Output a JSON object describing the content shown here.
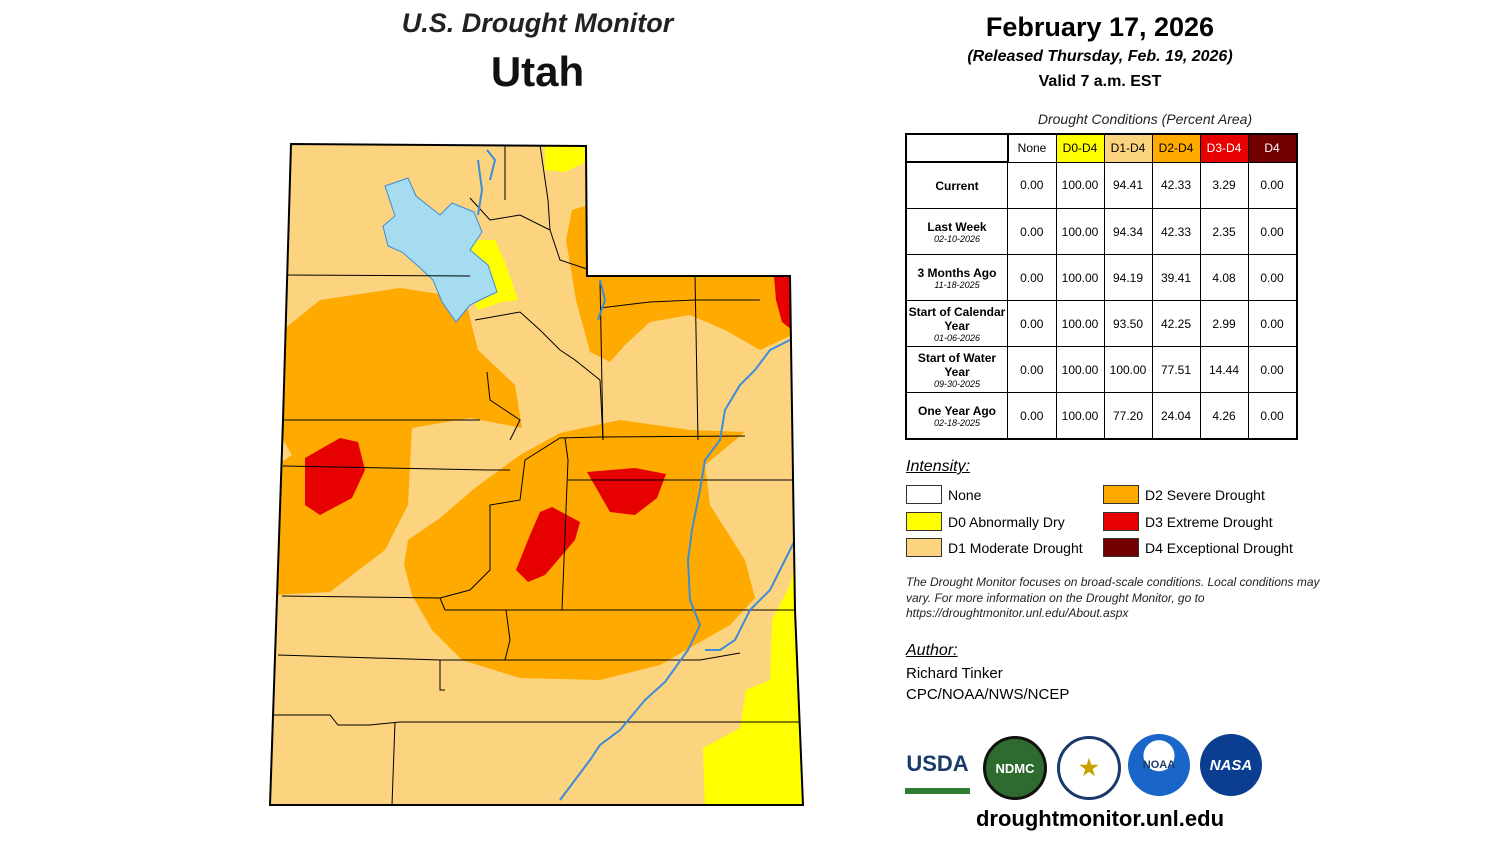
{
  "title": "U.S. Drought Monitor",
  "state": "Utah",
  "date": "February 17, 2026",
  "released": "(Released Thursday, Feb. 19, 2026)",
  "valid": "Valid 7 a.m. EST",
  "table": {
    "caption": "Drought Conditions (Percent Area)",
    "headers": [
      "None",
      "D0-D4",
      "D1-D4",
      "D2-D4",
      "D3-D4",
      "D4"
    ],
    "header_colors": [
      "#FFFFFF",
      "#FFFF00",
      "#FCD37F",
      "#FFAA00",
      "#E60000",
      "#730000"
    ],
    "rows": [
      {
        "label": "Current",
        "date": "",
        "values": [
          "0.00",
          "100.00",
          "94.41",
          "42.33",
          "3.29",
          "0.00"
        ]
      },
      {
        "label": "Last Week",
        "date": "02-10-2026",
        "values": [
          "0.00",
          "100.00",
          "94.34",
          "42.33",
          "2.35",
          "0.00"
        ]
      },
      {
        "label": "3 Months Ago",
        "date": "11-18-2025",
        "values": [
          "0.00",
          "100.00",
          "94.19",
          "39.41",
          "4.08",
          "0.00"
        ]
      },
      {
        "label": "Start of Calendar Year",
        "date": "01-06-2026",
        "values": [
          "0.00",
          "100.00",
          "93.50",
          "42.25",
          "2.99",
          "0.00"
        ]
      },
      {
        "label": "Start of Water Year",
        "date": "09-30-2025",
        "values": [
          "0.00",
          "100.00",
          "100.00",
          "77.51",
          "14.44",
          "0.00"
        ]
      },
      {
        "label": "One Year Ago",
        "date": "02-18-2025",
        "values": [
          "0.00",
          "100.00",
          "77.20",
          "24.04",
          "4.26",
          "0.00"
        ]
      }
    ]
  },
  "legend": {
    "title": "Intensity:",
    "items": [
      {
        "label": "None",
        "color": "#FFFFFF"
      },
      {
        "label": "D0 Abnormally Dry",
        "color": "#FFFF00"
      },
      {
        "label": "D1 Moderate Drought",
        "color": "#FCD37F"
      },
      {
        "label": "D2 Severe Drought",
        "color": "#FFAA00"
      },
      {
        "label": "D3 Extreme Drought",
        "color": "#E60000"
      },
      {
        "label": "D4 Exceptional Drought",
        "color": "#730000"
      }
    ]
  },
  "note": "The Drought Monitor focuses on broad-scale conditions. Local conditions may vary. For more information on the Drought Monitor, go to https://droughtmonitor.unl.edu/About.aspx",
  "author": {
    "label": "Author:",
    "name": "Richard Tinker",
    "org": "CPC/NOAA/NWS/NCEP"
  },
  "logos": [
    "USDA",
    "NDMC",
    "NOAA",
    "NASA"
  ],
  "url": "droughtmonitor.unl.edu",
  "map_colors": {
    "water": "#A6DCF0",
    "river": "#3C8CDC"
  }
}
